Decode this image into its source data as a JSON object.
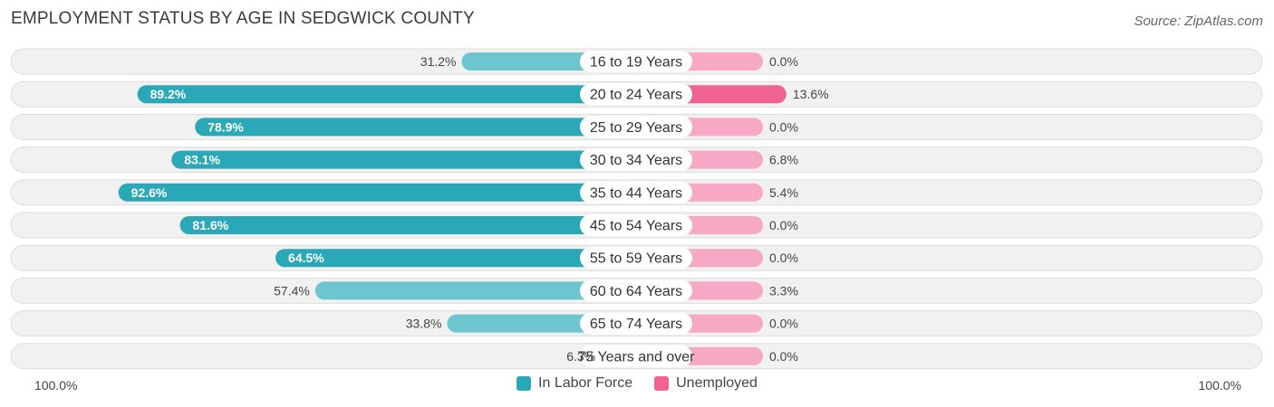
{
  "page": {
    "title": "EMPLOYMENT STATUS BY AGE IN SEDGWICK COUNTY",
    "source": "Source: ZipAtlas.com"
  },
  "chart_data": {
    "type": "bar",
    "orientation": "horizontal-diverging",
    "categories": [
      "16 to 19 Years",
      "20 to 24 Years",
      "25 to 29 Years",
      "30 to 34 Years",
      "35 to 44 Years",
      "45 to 54 Years",
      "55 to 59 Years",
      "60 to 64 Years",
      "65 to 74 Years",
      "75 Years and over"
    ],
    "series": [
      {
        "name": "In Labor Force",
        "color": "#2aa8b8",
        "color_light": "#6ec5d0",
        "values": [
          31.2,
          89.2,
          78.9,
          83.1,
          92.6,
          81.6,
          64.5,
          57.4,
          33.8,
          6.3
        ],
        "labels": [
          "31.2%",
          "89.2%",
          "78.9%",
          "83.1%",
          "92.6%",
          "81.6%",
          "64.5%",
          "57.4%",
          "33.8%",
          "6.3%"
        ]
      },
      {
        "name": "Unemployed",
        "color": "#f06292",
        "color_light": "#f7a8c4",
        "values": [
          0.0,
          13.6,
          0.0,
          6.8,
          5.4,
          0.0,
          0.0,
          3.3,
          0.0,
          0.0
        ],
        "labels": [
          "0.0%",
          "13.6%",
          "0.0%",
          "6.8%",
          "5.4%",
          "0.0%",
          "0.0%",
          "3.3%",
          "0.0%",
          "0.0%"
        ]
      }
    ],
    "axis": {
      "left_label": "100.0%",
      "right_label": "100.0%",
      "max": 100
    },
    "legend": [
      "In Labor Force",
      "Unemployed"
    ]
  }
}
